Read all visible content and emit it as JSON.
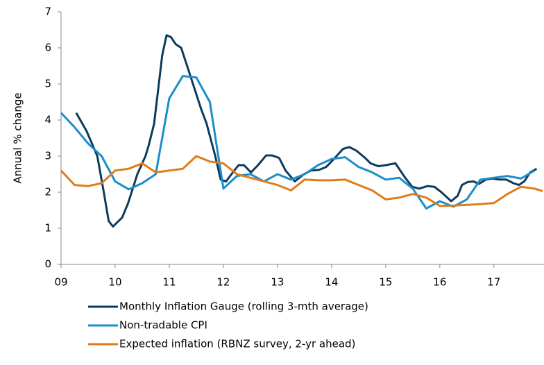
{
  "chart_data": {
    "type": "line",
    "y_label": "Annual % change",
    "xlim": [
      2009,
      2017.9
    ],
    "xticks": [
      {
        "value": 2009,
        "label": "09"
      },
      {
        "value": 2010,
        "label": "10"
      },
      {
        "value": 2011,
        "label": "11"
      },
      {
        "value": 2012,
        "label": "12"
      },
      {
        "value": 2013,
        "label": "13"
      },
      {
        "value": 2014,
        "label": "14"
      },
      {
        "value": 2015,
        "label": "15"
      },
      {
        "value": 2016,
        "label": "16"
      },
      {
        "value": 2017,
        "label": "17"
      }
    ],
    "ylim": [
      0,
      7
    ],
    "yticks": [
      0,
      1,
      2,
      3,
      4,
      5,
      6,
      7
    ],
    "legend": "bottom",
    "series": [
      {
        "name": "Monthly Inflation Gauge (rolling 3-mth average)",
        "color": "#0c3b5c",
        "x": [
          2009.28,
          2009.47,
          2009.67,
          2009.79,
          2009.88,
          2009.96,
          2010.13,
          2010.24,
          2010.41,
          2010.56,
          2010.62,
          2010.72,
          2010.87,
          2010.95,
          2011.03,
          2011.12,
          2011.22,
          2011.33,
          2011.46,
          2011.59,
          2011.69,
          2011.85,
          2011.95,
          2012.05,
          2012.15,
          2012.28,
          2012.38,
          2012.51,
          2012.64,
          2012.79,
          2012.9,
          2013.03,
          2013.15,
          2013.32,
          2013.49,
          2013.62,
          2013.77,
          2013.9,
          2014.03,
          2014.21,
          2014.33,
          2014.46,
          2014.62,
          2014.72,
          2014.87,
          2015.0,
          2015.18,
          2015.36,
          2015.49,
          2015.62,
          2015.77,
          2015.9,
          2016.03,
          2016.21,
          2016.33,
          2016.41,
          2016.51,
          2016.62,
          2016.72,
          2016.85,
          2016.97,
          2017.1,
          2017.23,
          2017.36,
          2017.46,
          2017.56,
          2017.67,
          2017.79
        ],
        "values": [
          4.2,
          3.7,
          3.0,
          2.0,
          1.2,
          1.05,
          1.3,
          1.7,
          2.5,
          3.0,
          3.3,
          3.9,
          5.8,
          6.35,
          6.3,
          6.1,
          6.0,
          5.5,
          4.9,
          4.3,
          3.9,
          3.0,
          2.35,
          2.3,
          2.5,
          2.75,
          2.75,
          2.55,
          2.75,
          3.02,
          3.02,
          2.95,
          2.6,
          2.3,
          2.5,
          2.6,
          2.62,
          2.7,
          2.9,
          3.2,
          3.25,
          3.15,
          2.95,
          2.8,
          2.72,
          2.75,
          2.8,
          2.4,
          2.15,
          2.1,
          2.17,
          2.15,
          2.0,
          1.75,
          1.9,
          2.2,
          2.28,
          2.3,
          2.23,
          2.35,
          2.38,
          2.35,
          2.35,
          2.25,
          2.2,
          2.3,
          2.55,
          2.65
        ]
      },
      {
        "name": "Non-tradable CPI",
        "color": "#1a8dcb",
        "x": [
          2009.0,
          2009.25,
          2009.5,
          2009.75,
          2010.0,
          2010.25,
          2010.5,
          2010.75,
          2011.0,
          2011.25,
          2011.5,
          2011.75,
          2012.0,
          2012.25,
          2012.5,
          2012.75,
          2013.0,
          2013.25,
          2013.5,
          2013.75,
          2014.0,
          2014.25,
          2014.5,
          2014.75,
          2015.0,
          2015.25,
          2015.5,
          2015.75,
          2016.0,
          2016.25,
          2016.5,
          2016.75,
          2017.0,
          2017.25,
          2017.5,
          2017.75
        ],
        "values": [
          4.2,
          3.8,
          3.35,
          3.0,
          2.3,
          2.08,
          2.25,
          2.5,
          4.6,
          5.22,
          5.18,
          4.5,
          2.1,
          2.45,
          2.5,
          2.3,
          2.5,
          2.35,
          2.5,
          2.75,
          2.92,
          2.97,
          2.7,
          2.55,
          2.35,
          2.4,
          2.1,
          1.55,
          1.75,
          1.6,
          1.8,
          2.35,
          2.4,
          2.45,
          2.38,
          2.6
        ]
      },
      {
        "name": "Expected inflation (RBNZ survey, 2-yr ahead)",
        "color": "#e07c18",
        "x": [
          2009.0,
          2009.25,
          2009.5,
          2009.75,
          2010.0,
          2010.25,
          2010.5,
          2010.75,
          2011.0,
          2011.25,
          2011.5,
          2011.75,
          2012.0,
          2012.25,
          2012.5,
          2012.75,
          2013.0,
          2013.25,
          2013.5,
          2013.75,
          2014.0,
          2014.25,
          2014.5,
          2014.75,
          2015.0,
          2015.25,
          2015.5,
          2015.75,
          2016.0,
          2016.25,
          2016.5,
          2016.75,
          2017.0,
          2017.25,
          2017.5,
          2017.75,
          2017.9
        ],
        "values": [
          2.6,
          2.2,
          2.17,
          2.25,
          2.6,
          2.65,
          2.8,
          2.55,
          2.6,
          2.65,
          3.0,
          2.85,
          2.8,
          2.5,
          2.4,
          2.3,
          2.2,
          2.05,
          2.35,
          2.33,
          2.33,
          2.35,
          2.2,
          2.05,
          1.8,
          1.85,
          1.95,
          1.85,
          1.62,
          1.63,
          1.65,
          1.67,
          1.7,
          1.95,
          2.15,
          2.1,
          2.03
        ]
      }
    ]
  }
}
